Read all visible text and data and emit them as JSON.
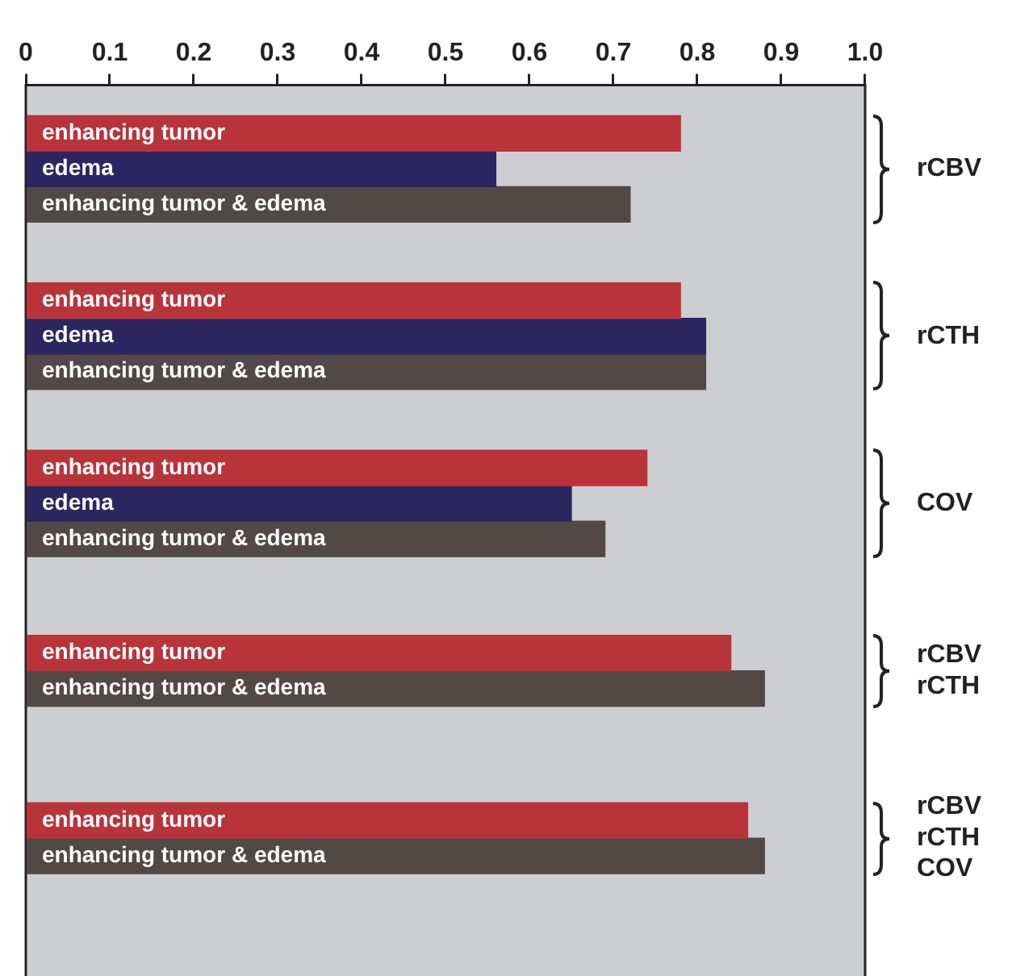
{
  "chart_data": {
    "type": "bar",
    "orientation": "horizontal",
    "categories": [
      "rCBV",
      "rCTH",
      "COV",
      "rCBV\nrCTH",
      "rCBV\nrCTH\nCOV"
    ],
    "series": [
      {
        "name": "enhancing tumor",
        "color": "#b8343a",
        "values": [
          0.78,
          0.78,
          0.74,
          0.84,
          0.86
        ]
      },
      {
        "name": "edema",
        "color": "#2b2660",
        "values": [
          0.56,
          0.81,
          0.65,
          null,
          null
        ]
      },
      {
        "name": "enhancing tumor & edema",
        "color": "#524845",
        "values": [
          0.72,
          0.81,
          0.69,
          0.88,
          0.88
        ]
      }
    ],
    "xlim": [
      0,
      1
    ],
    "xticks": [
      0,
      0.1,
      0.2,
      0.3,
      0.4,
      0.5,
      0.6,
      0.7,
      0.8,
      0.9,
      {
        "value": 1,
        "label": "1.0"
      }
    ],
    "grid": false,
    "legend": false
  }
}
